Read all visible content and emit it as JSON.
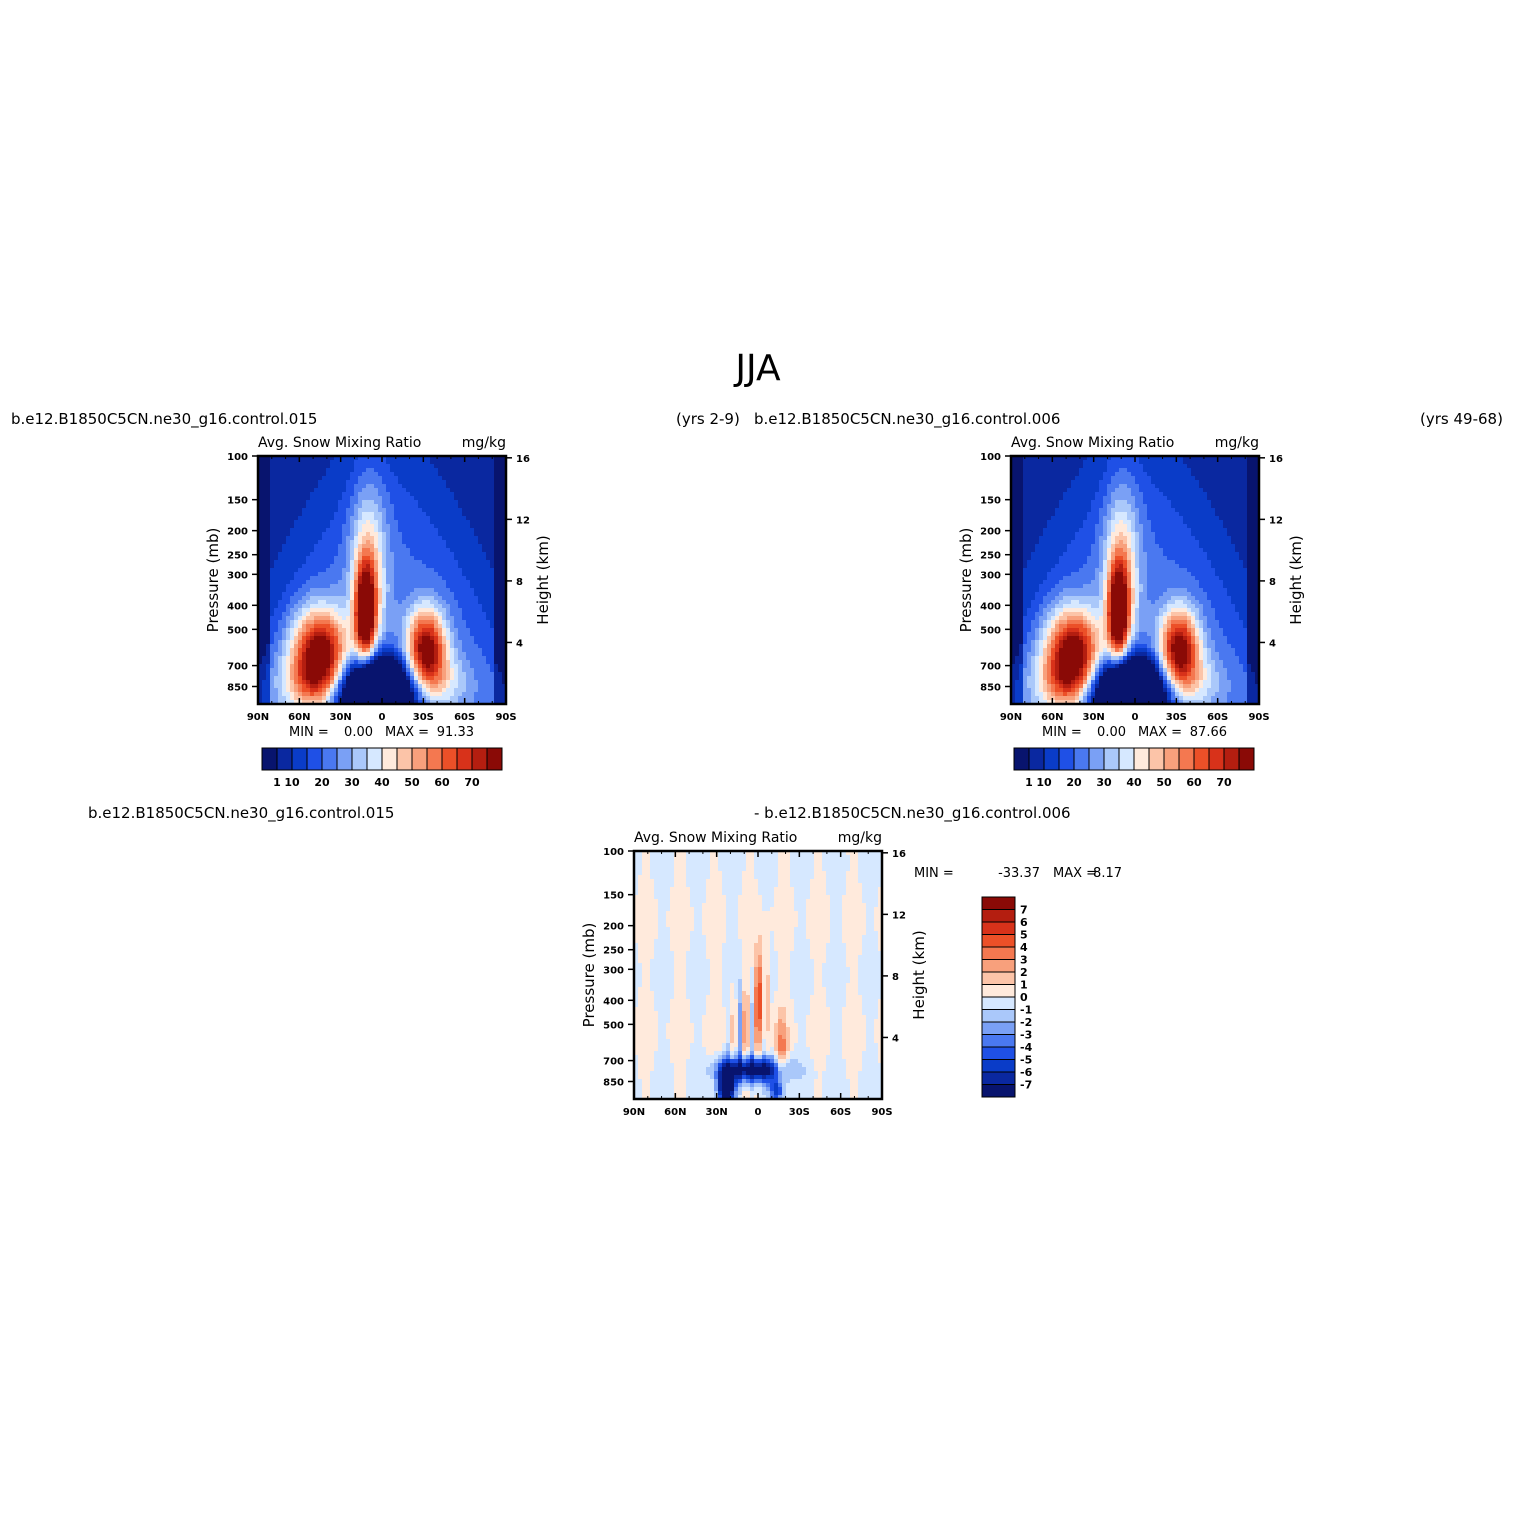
{
  "page_title": "JJA",
  "chart_data": [
    {
      "type": "heatmap",
      "case_name": "b.e12.B1850C5CN.ne30_g16.control.015",
      "years_label": "(yrs 2-9)",
      "title_left": "Avg. Snow Mixing Ratio",
      "title_right": "mg/kg",
      "ylabel": "Pressure (mb)",
      "ylabel_right": "Height (km)",
      "x_ticks": [
        "90N",
        "60N",
        "30N",
        "0",
        "30S",
        "60S",
        "90S"
      ],
      "y_ticks": [
        "100",
        "150",
        "200",
        "250",
        "300",
        "400",
        "500",
        "700",
        "850"
      ],
      "y_ticks_right": [
        "16",
        "12",
        "8",
        "4"
      ],
      "xlim": [
        90,
        -90
      ],
      "ylim": [
        1000,
        100
      ],
      "y_scale": "log",
      "min_label": "MIN =",
      "min_value": "0.00",
      "max_label": "MAX =",
      "max_value": "91.33",
      "colorbar": {
        "orientation": "horizontal",
        "labels": [
          "1",
          "10",
          "20",
          "30",
          "40",
          "50",
          "60",
          "70"
        ],
        "colors": [
          "#08146e",
          "#0a28a0",
          "#0a3cc8",
          "#1f50e6",
          "#4a78f0",
          "#7aa0f5",
          "#aac8fa",
          "#d6e8ff",
          "#ffeadc",
          "#fcc4a8",
          "#f8a07c",
          "#f47850",
          "#ec5028",
          "#d8321a",
          "#b41e10",
          "#8a0a06"
        ]
      }
    },
    {
      "type": "heatmap",
      "case_name": "b.e12.B1850C5CN.ne30_g16.control.006",
      "years_label": "(yrs 49-68)",
      "title_left": "Avg. Snow Mixing Ratio",
      "title_right": "mg/kg",
      "ylabel": "Pressure (mb)",
      "ylabel_right": "Height (km)",
      "x_ticks": [
        "90N",
        "60N",
        "30N",
        "0",
        "30S",
        "60S",
        "90S"
      ],
      "y_ticks": [
        "100",
        "150",
        "200",
        "250",
        "300",
        "400",
        "500",
        "700",
        "850"
      ],
      "y_ticks_right": [
        "16",
        "12",
        "8",
        "4"
      ],
      "xlim": [
        90,
        -90
      ],
      "ylim": [
        1000,
        100
      ],
      "y_scale": "log",
      "min_label": "MIN =",
      "min_value": "0.00",
      "max_label": "MAX =",
      "max_value": "87.66",
      "colorbar": {
        "orientation": "horizontal",
        "labels": [
          "1",
          "10",
          "20",
          "30",
          "40",
          "50",
          "60",
          "70"
        ],
        "colors": [
          "#08146e",
          "#0a28a0",
          "#0a3cc8",
          "#1f50e6",
          "#4a78f0",
          "#7aa0f5",
          "#aac8fa",
          "#d6e8ff",
          "#ffeadc",
          "#fcc4a8",
          "#f8a07c",
          "#f47850",
          "#ec5028",
          "#d8321a",
          "#b41e10",
          "#8a0a06"
        ]
      }
    },
    {
      "type": "heatmap",
      "case_name_a": "b.e12.B1850C5CN.ne30_g16.control.015",
      "case_name_b": "- b.e12.B1850C5CN.ne30_g16.control.006",
      "title_left": "Avg. Snow Mixing Ratio",
      "title_right": "mg/kg",
      "ylabel": "Pressure (mb)",
      "ylabel_right": "Height (km)",
      "x_ticks": [
        "90N",
        "60N",
        "30N",
        "0",
        "30S",
        "60S",
        "90S"
      ],
      "y_ticks": [
        "100",
        "150",
        "200",
        "250",
        "300",
        "400",
        "500",
        "700",
        "850"
      ],
      "y_ticks_right": [
        "16",
        "12",
        "8",
        "4"
      ],
      "xlim": [
        90,
        -90
      ],
      "ylim": [
        1000,
        100
      ],
      "y_scale": "log",
      "min_label": "MIN =",
      "min_value": "-33.37",
      "max_label": "MAX =",
      "max_value": "8.17",
      "colorbar": {
        "orientation": "vertical",
        "labels": [
          "7",
          "6",
          "5",
          "4",
          "3",
          "2",
          "1",
          "0",
          "-1",
          "-2",
          "-3",
          "-4",
          "-5",
          "-6",
          "-7"
        ],
        "colors": [
          "#8a0a06",
          "#b41e10",
          "#d8321a",
          "#ec5028",
          "#f47850",
          "#f8a07c",
          "#fcc4a8",
          "#ffeadc",
          "#d6e8ff",
          "#aac8fa",
          "#7aa0f5",
          "#4a78f0",
          "#1f50e6",
          "#0a3cc8",
          "#0a28a0",
          "#08146e"
        ]
      }
    }
  ]
}
